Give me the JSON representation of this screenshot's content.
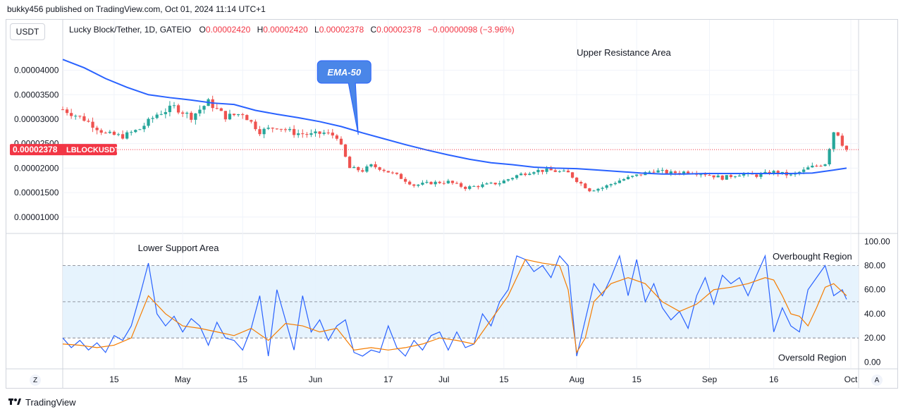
{
  "header": {
    "publisher": "bukky456 published on TradingView.com, Oct 01, 2024 11:14 UTC+1"
  },
  "unit_button": "USDT",
  "legend": {
    "symbol": "Lucky Block/Tether, 1D, GATEIO",
    "o_label": "O",
    "o_value": "0.00002420",
    "h_label": "H",
    "h_value": "0.00002420",
    "l_label": "L",
    "l_value": "0.00002378",
    "c_label": "C",
    "c_value": "0.00002378",
    "change": "−0.00000098 (−3.96%)"
  },
  "footer": {
    "brand": "TradingView"
  },
  "corner_left": "Z",
  "corner_right": "A",
  "colors": {
    "up": "#26a69a",
    "down": "#ef5350",
    "ema": "#2962ff",
    "rsi": "#2962ff",
    "rsi_ma": "#f57c00",
    "band": "#e3f2fd",
    "price_tag": "#f23645"
  },
  "chart_data": [
    {
      "type": "candlestick",
      "title": "Lucky Block/Tether, 1D, GATEIO",
      "y_range": [
        6.8e-06,
        4.57e-05
      ],
      "x_range": [
        0,
        184
      ],
      "y_ticks": [
        "0.00001000",
        "0.00001500",
        "0.00002000",
        "0.00002500",
        "0.00003000",
        "0.00003500",
        "0.00004000"
      ],
      "y_tick_values": [
        1e-05,
        1.5e-05,
        2e-05,
        2.5e-05,
        3e-05,
        3.5e-05,
        4e-05
      ],
      "x_tick_labels": [
        "15",
        "May",
        "15",
        "Jun",
        "17",
        "Jul",
        "15",
        "Aug",
        "15",
        "Sep",
        "16",
        "Oct"
      ],
      "x_tick_days": [
        12,
        28,
        42,
        59,
        76,
        89,
        103,
        120,
        134,
        151,
        166,
        184
      ],
      "last_price": {
        "label": "0.00002378",
        "symbol": "LBLOCKUSDT",
        "value": 2.378e-05
      },
      "annotations": [
        {
          "text": "EMA-50",
          "target_day": 69,
          "target_value": 2.68e-05
        },
        {
          "text": "Upper Resistance Area",
          "day": 131,
          "value": 4.37e-05
        }
      ],
      "ema": {
        "name": "EMA-50",
        "days": [
          0,
          5,
          10,
          15,
          20,
          25,
          30,
          35,
          40,
          45,
          50,
          55,
          60,
          65,
          70,
          75,
          80,
          85,
          90,
          95,
          100,
          105,
          110,
          115,
          120,
          125,
          130,
          135,
          140,
          145,
          150,
          155,
          160,
          165,
          170,
          175,
          180,
          183
        ],
        "values": [
          4.22e-05,
          4.05e-05,
          3.83e-05,
          3.65e-05,
          3.5e-05,
          3.44e-05,
          3.39e-05,
          3.33e-05,
          3.3e-05,
          3.18e-05,
          3.1e-05,
          3.03e-05,
          2.95e-05,
          2.85e-05,
          2.72e-05,
          2.6e-05,
          2.48e-05,
          2.37e-05,
          2.27e-05,
          2.18e-05,
          2.11e-05,
          2.07e-05,
          2.02e-05,
          2e-05,
          1.99e-05,
          1.96e-05,
          1.93e-05,
          1.9e-05,
          1.88e-05,
          1.88e-05,
          1.89e-05,
          1.89e-05,
          1.89e-05,
          1.89e-05,
          1.89e-05,
          1.9e-05,
          1.96e-05,
          2e-05
        ]
      },
      "anchors": {
        "days": [
          0,
          5,
          10,
          14,
          18,
          22,
          26,
          30,
          34,
          38,
          42,
          46,
          50,
          54,
          58,
          61,
          64,
          67,
          70,
          72,
          74,
          78,
          82,
          86,
          90,
          94,
          98,
          102,
          106,
          110,
          114,
          118,
          120,
          123,
          126,
          130,
          134,
          138,
          142,
          146,
          150,
          154,
          158,
          162,
          166,
          170,
          173,
          174,
          176,
          178,
          180,
          181,
          182,
          183
        ],
        "values": [
          3.2e-05,
          3e-05,
          2.7e-05,
          2.65e-05,
          2.8e-05,
          3.1e-05,
          3.25e-05,
          3.05e-05,
          3.35e-05,
          3.05e-05,
          3.12e-05,
          2.75e-05,
          2.85e-05,
          2.72e-05,
          2.68e-05,
          2.72e-05,
          2.65e-05,
          2e-05,
          1.95e-05,
          2.05e-05,
          2e-05,
          1.85e-05,
          1.65e-05,
          1.7e-05,
          1.72e-05,
          1.6e-05,
          1.65e-05,
          1.7e-05,
          1.85e-05,
          1.95e-05,
          1.95e-05,
          1.9e-05,
          1.75e-05,
          1.55e-05,
          1.6e-05,
          1.75e-05,
          1.85e-05,
          1.95e-05,
          1.9e-05,
          1.93e-05,
          1.88e-05,
          1.8e-05,
          1.88e-05,
          1.85e-05,
          1.92e-05,
          1.85e-05,
          1.95e-05,
          2e-05,
          2.05e-05,
          2.1e-05,
          2.75e-05,
          2.7e-05,
          2.5e-05,
          2.38e-05
        ]
      }
    },
    {
      "type": "line",
      "y_range": [
        -5,
        106
      ],
      "y_ticks": [
        "0.00",
        "20.00",
        "40.00",
        "60.00",
        "80.00",
        "100.00"
      ],
      "y_tick_values": [
        0,
        20,
        40,
        60,
        80,
        100
      ],
      "band": [
        20,
        80
      ],
      "dashed_levels": [
        20,
        50,
        80
      ],
      "annotations": [
        {
          "text": "Lower Support Area",
          "day": 27,
          "value": 95
        },
        {
          "text": "Overbought Region",
          "day": 175,
          "value": 88
        },
        {
          "text": "Oversold Region",
          "day": 175,
          "value": 4
        }
      ],
      "series": [
        {
          "days": [
            0,
            2,
            4,
            6,
            8,
            10,
            12,
            14,
            16,
            18,
            20,
            22,
            24,
            26,
            28,
            30,
            32,
            34,
            36,
            38,
            40,
            42,
            44,
            46,
            48,
            50,
            52,
            54,
            56,
            58,
            60,
            62,
            64,
            66,
            68,
            70,
            72,
            74,
            76,
            78,
            80,
            82,
            84,
            86,
            88,
            90,
            92,
            94,
            96,
            98,
            100,
            102,
            104,
            106,
            108,
            110,
            112,
            114,
            116,
            118,
            120,
            122,
            124,
            126,
            128,
            130,
            132,
            134,
            136,
            138,
            140,
            142,
            144,
            146,
            148,
            150,
            152,
            154,
            156,
            158,
            160,
            162,
            164,
            166,
            168,
            170,
            172,
            174,
            176,
            178,
            180,
            182,
            183
          ],
          "values": [
            20,
            12,
            18,
            10,
            16,
            8,
            22,
            18,
            30,
            55,
            82,
            40,
            30,
            38,
            25,
            36,
            30,
            14,
            33,
            20,
            18,
            10,
            28,
            55,
            5,
            60,
            35,
            10,
            55,
            25,
            35,
            18,
            30,
            35,
            8,
            5,
            10,
            8,
            30,
            12,
            5,
            18,
            10,
            22,
            25,
            10,
            25,
            12,
            15,
            40,
            30,
            50,
            60,
            88,
            85,
            75,
            80,
            70,
            88,
            80,
            5,
            35,
            65,
            55,
            70,
            88,
            55,
            85,
            50,
            65,
            45,
            35,
            42,
            28,
            55,
            70,
            48,
            72,
            65,
            70,
            55,
            72,
            88,
            25,
            45,
            30,
            25,
            60,
            70,
            80,
            55,
            60,
            52
          ]
        },
        {
          "days": [
            0,
            4,
            8,
            12,
            16,
            20,
            24,
            28,
            32,
            36,
            40,
            44,
            48,
            52,
            56,
            60,
            64,
            68,
            72,
            76,
            80,
            84,
            88,
            92,
            96,
            100,
            104,
            108,
            112,
            116,
            118,
            120,
            122,
            124,
            128,
            132,
            136,
            140,
            144,
            148,
            152,
            156,
            160,
            164,
            166,
            168,
            170,
            172,
            174,
            176,
            178,
            180,
            183
          ],
          "values": [
            15,
            14,
            12,
            14,
            20,
            55,
            40,
            30,
            28,
            25,
            22,
            28,
            18,
            32,
            30,
            25,
            28,
            10,
            12,
            10,
            12,
            15,
            20,
            18,
            15,
            35,
            55,
            85,
            82,
            80,
            60,
            8,
            20,
            50,
            65,
            70,
            65,
            50,
            42,
            48,
            60,
            62,
            65,
            70,
            68,
            55,
            40,
            38,
            30,
            45,
            62,
            65,
            55
          ]
        }
      ]
    }
  ]
}
